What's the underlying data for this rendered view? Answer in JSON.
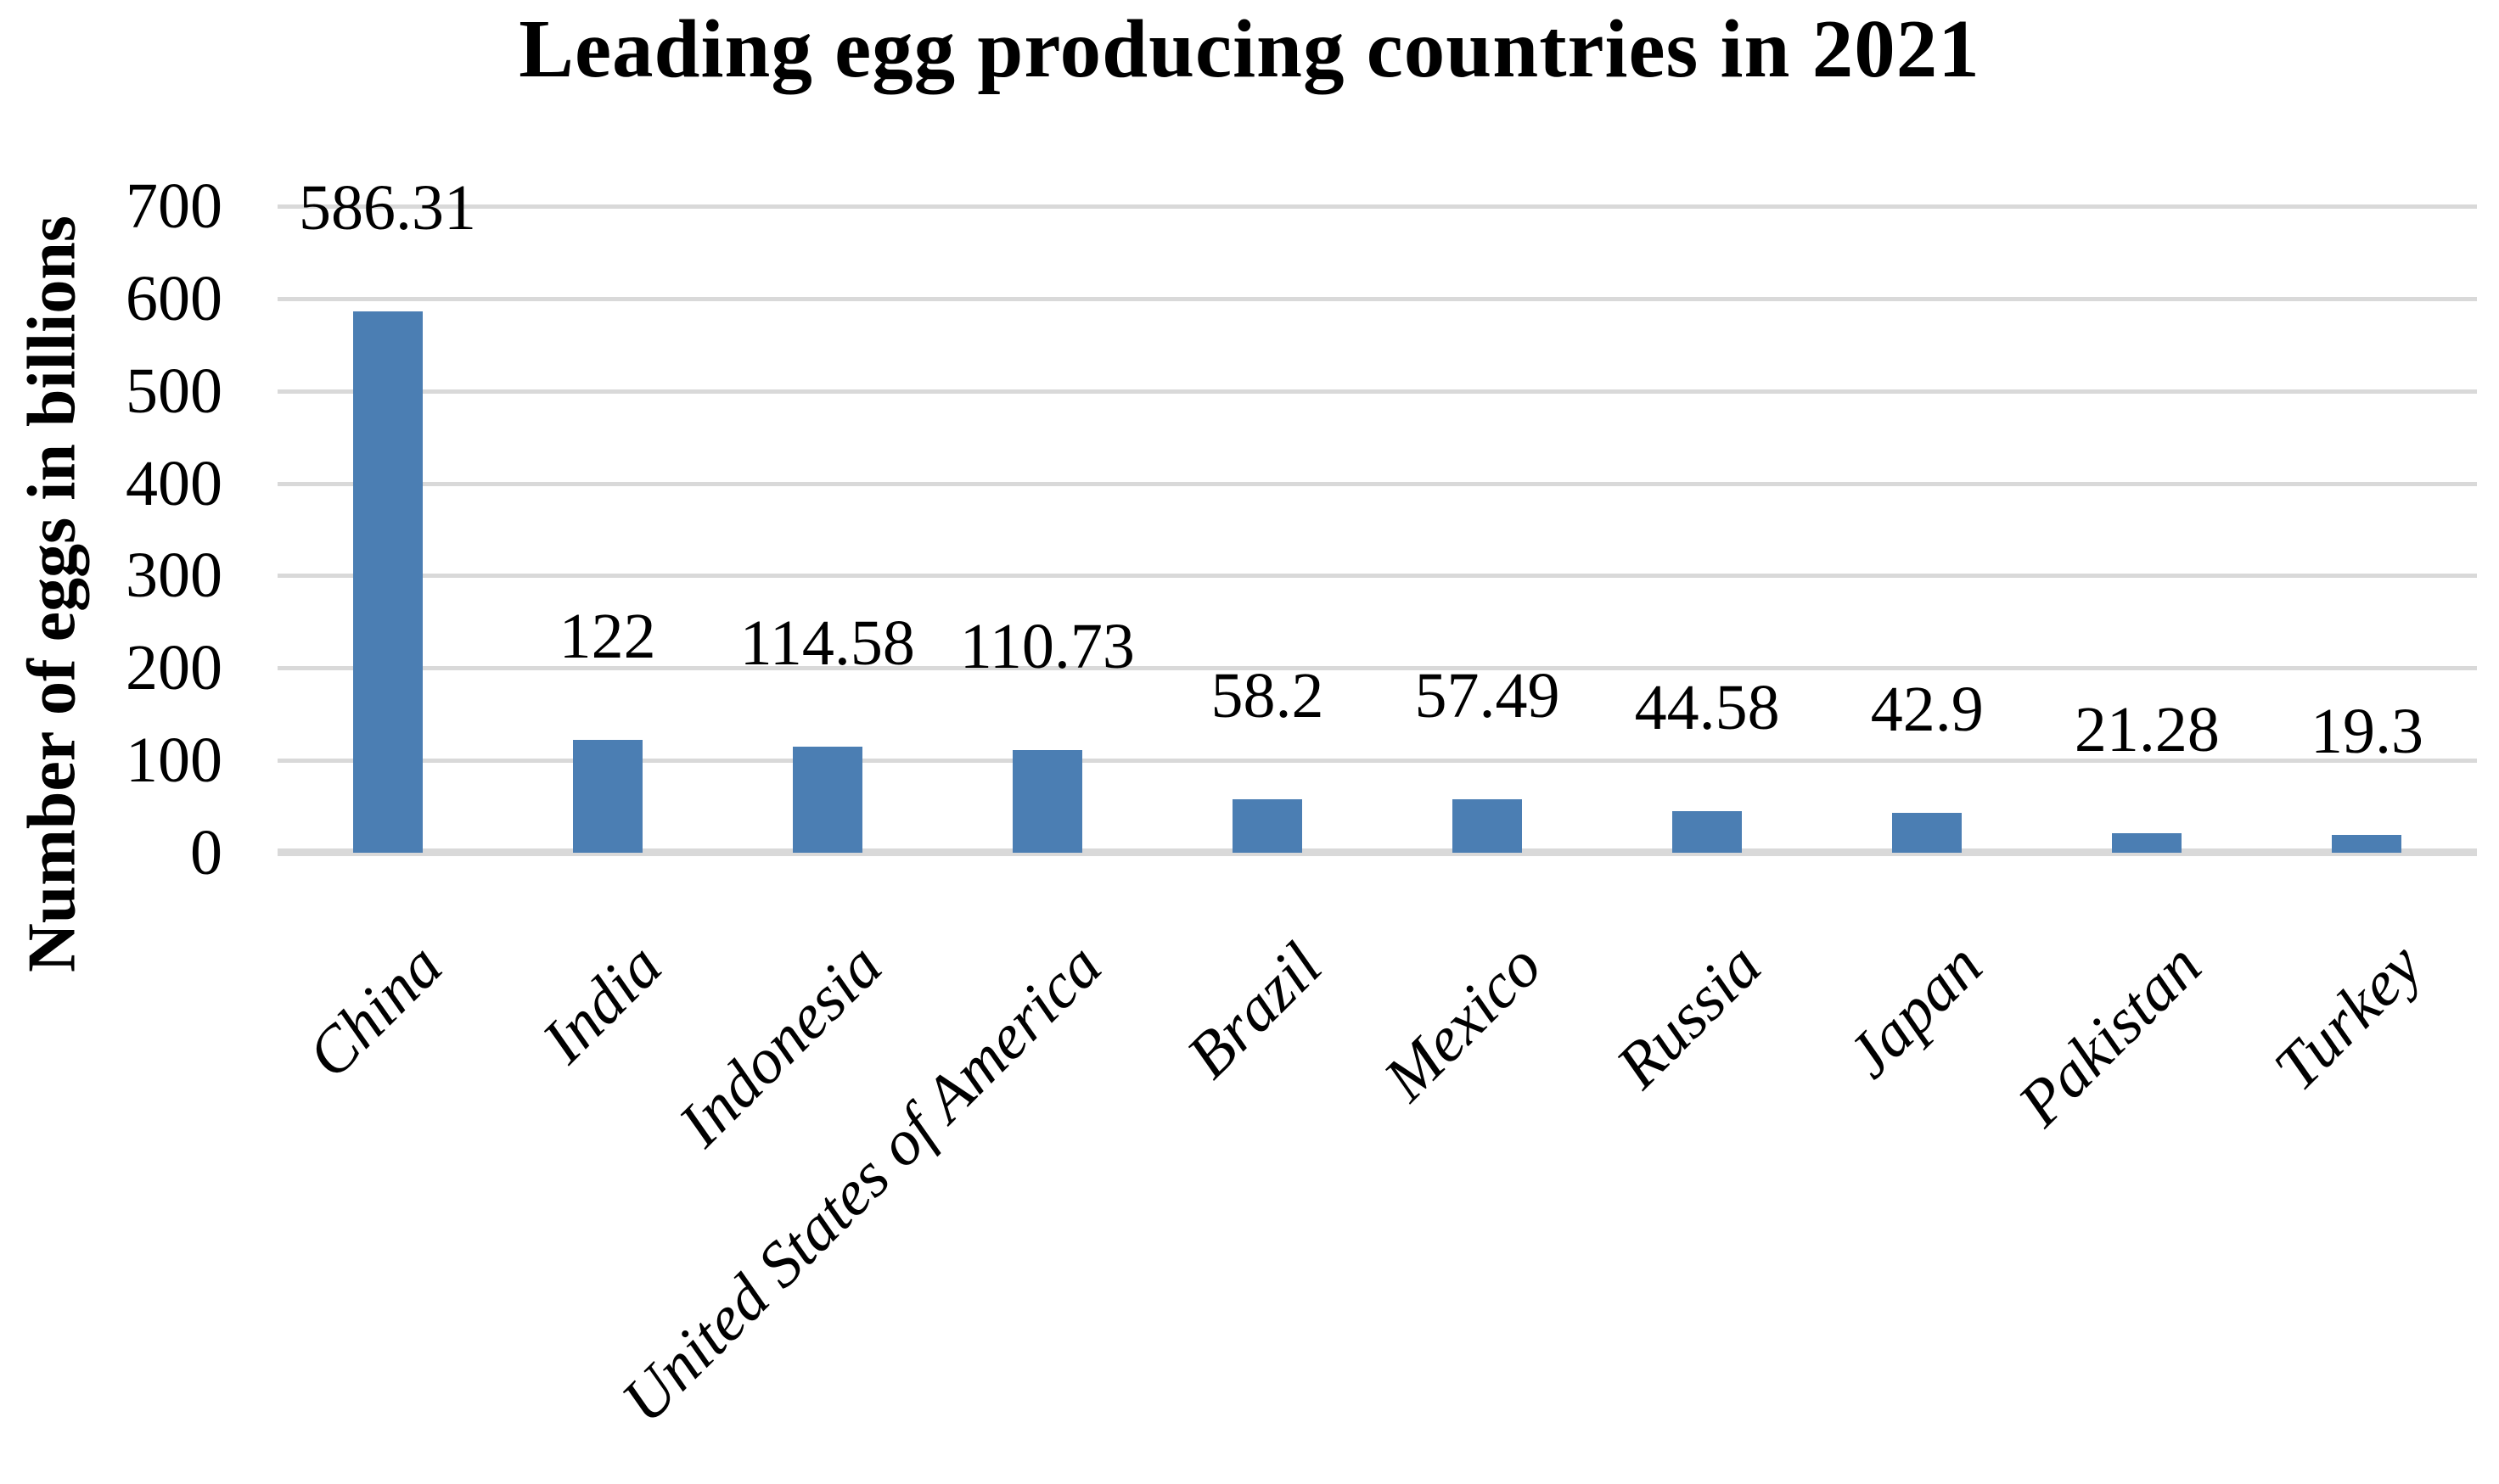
{
  "chart_data": {
    "type": "bar",
    "title": "Leading egg producing countries in 2021",
    "ylabel": "Number of eggs in billions",
    "xlabel": "",
    "categories": [
      "China",
      "India",
      "Indonesia",
      "United States of America",
      "Brazil",
      "Mexico",
      "Russia",
      "Japan",
      "Pakistan",
      "Turkey"
    ],
    "values": [
      586.31,
      122,
      114.58,
      110.73,
      58.2,
      57.49,
      44.58,
      42.9,
      21.28,
      19.3
    ],
    "value_labels": [
      "586.31",
      "122",
      "114.58",
      "110.73",
      "58.2",
      "57.49",
      "44.58",
      "42.9",
      "21.28",
      "19.3"
    ],
    "yticks": [
      0,
      100,
      200,
      300,
      400,
      500,
      600,
      700
    ],
    "ylim": [
      0,
      700
    ],
    "grid": "horizontal-only",
    "legend": "none",
    "bar_color": "#4b7eb3",
    "gridline_color": "#d9d9d9",
    "text_color": "#000000"
  }
}
